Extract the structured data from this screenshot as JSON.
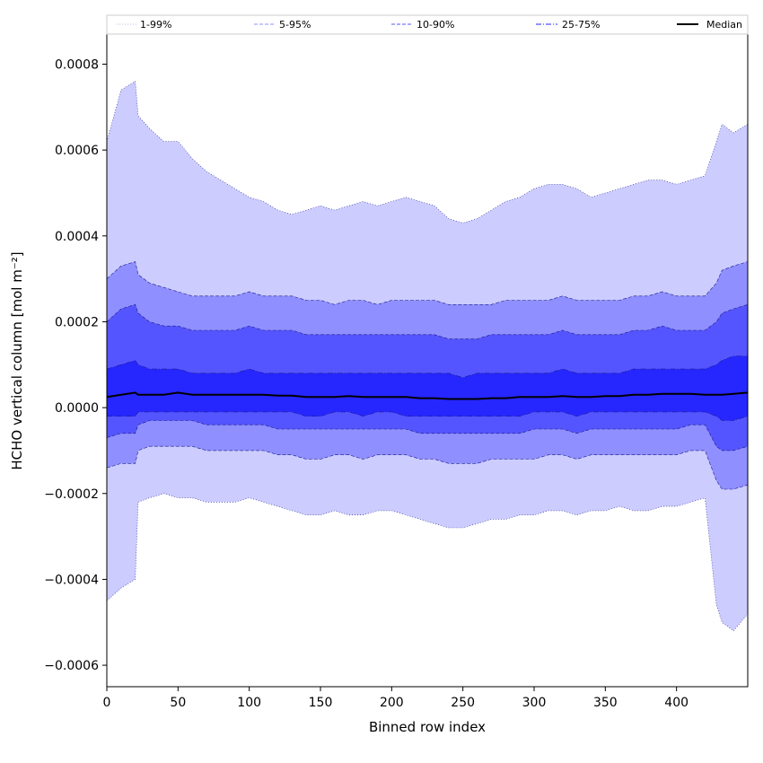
{
  "chart_data": {
    "type": "area",
    "xlabel": "Binned row index",
    "ylabel": "HCHO vertical column [mol m⁻²]",
    "xlim": [
      0,
      450
    ],
    "ylim": [
      -0.00065,
      0.00087
    ],
    "x_ticks": [
      0,
      50,
      100,
      150,
      200,
      250,
      300,
      350,
      400
    ],
    "x_tick_labels": [
      "0",
      "50",
      "100",
      "150",
      "200",
      "250",
      "300",
      "350",
      "400"
    ],
    "y_ticks": [
      -0.0006,
      -0.0004,
      -0.0002,
      0.0,
      0.0002,
      0.0004,
      0.0006,
      0.0008
    ],
    "y_tick_labels": [
      "−0.0006",
      "−0.0004",
      "−0.0002",
      "0.0000",
      "0.0002",
      "0.0004",
      "0.0006",
      "0.0008"
    ],
    "grid": false,
    "legend_position": "top",
    "legend": [
      {
        "label": "1-99%",
        "color": "#ccccff",
        "style": "dotted"
      },
      {
        "label": "5-95%",
        "color": "#8f8fff",
        "style": "dashed"
      },
      {
        "label": "10-90%",
        "color": "#5555ff",
        "style": "dashed"
      },
      {
        "label": "25-75%",
        "color": "#2626ff",
        "style": "dashdot"
      },
      {
        "label": "Median",
        "color": "#000000",
        "style": "solid"
      }
    ],
    "x": [
      0,
      10,
      20,
      22,
      30,
      40,
      50,
      60,
      70,
      80,
      90,
      100,
      110,
      120,
      130,
      140,
      150,
      160,
      170,
      180,
      190,
      200,
      210,
      220,
      230,
      240,
      250,
      260,
      270,
      280,
      290,
      300,
      310,
      320,
      330,
      340,
      350,
      360,
      370,
      380,
      390,
      400,
      410,
      420,
      428,
      432,
      440,
      450
    ],
    "series": [
      {
        "name": "1-99%",
        "fill": "#ccccff",
        "upper": [
          0.00062,
          0.00074,
          0.00076,
          0.00068,
          0.00065,
          0.00062,
          0.00062,
          0.00058,
          0.00055,
          0.00053,
          0.00051,
          0.00049,
          0.00048,
          0.00046,
          0.00045,
          0.00046,
          0.00047,
          0.00046,
          0.00047,
          0.00048,
          0.00047,
          0.00048,
          0.00049,
          0.00048,
          0.00047,
          0.00044,
          0.00043,
          0.00044,
          0.00046,
          0.00048,
          0.00049,
          0.00051,
          0.00052,
          0.00052,
          0.00051,
          0.00049,
          0.0005,
          0.00051,
          0.00052,
          0.00053,
          0.00053,
          0.00052,
          0.00053,
          0.00054,
          0.00062,
          0.00066,
          0.00064,
          0.00066
        ],
        "lower": [
          -0.00045,
          -0.00042,
          -0.0004,
          -0.00022,
          -0.00021,
          -0.0002,
          -0.00021,
          -0.00021,
          -0.00022,
          -0.00022,
          -0.00022,
          -0.00021,
          -0.00022,
          -0.00023,
          -0.00024,
          -0.00025,
          -0.00025,
          -0.00024,
          -0.00025,
          -0.00025,
          -0.00024,
          -0.00024,
          -0.00025,
          -0.00026,
          -0.00027,
          -0.00028,
          -0.00028,
          -0.00027,
          -0.00026,
          -0.00026,
          -0.00025,
          -0.00025,
          -0.00024,
          -0.00024,
          -0.00025,
          -0.00024,
          -0.00024,
          -0.00023,
          -0.00024,
          -0.00024,
          -0.00023,
          -0.00023,
          -0.00022,
          -0.00021,
          -0.00046,
          -0.0005,
          -0.00052,
          -0.00048
        ]
      },
      {
        "name": "5-95%",
        "fill": "#8f8fff",
        "upper": [
          0.0003,
          0.00033,
          0.00034,
          0.00031,
          0.00029,
          0.00028,
          0.00027,
          0.00026,
          0.00026,
          0.00026,
          0.00026,
          0.00027,
          0.00026,
          0.00026,
          0.00026,
          0.00025,
          0.00025,
          0.00024,
          0.00025,
          0.00025,
          0.00024,
          0.00025,
          0.00025,
          0.00025,
          0.00025,
          0.00024,
          0.00024,
          0.00024,
          0.00024,
          0.00025,
          0.00025,
          0.00025,
          0.00025,
          0.00026,
          0.00025,
          0.00025,
          0.00025,
          0.00025,
          0.00026,
          0.00026,
          0.00027,
          0.00026,
          0.00026,
          0.00026,
          0.00029,
          0.00032,
          0.00033,
          0.00034
        ],
        "lower": [
          -0.00014,
          -0.00013,
          -0.00013,
          -0.0001,
          -9e-05,
          -9e-05,
          -9e-05,
          -9e-05,
          -0.0001,
          -0.0001,
          -0.0001,
          -0.0001,
          -0.0001,
          -0.00011,
          -0.00011,
          -0.00012,
          -0.00012,
          -0.00011,
          -0.00011,
          -0.00012,
          -0.00011,
          -0.00011,
          -0.00011,
          -0.00012,
          -0.00012,
          -0.00013,
          -0.00013,
          -0.00013,
          -0.00012,
          -0.00012,
          -0.00012,
          -0.00012,
          -0.00011,
          -0.00011,
          -0.00012,
          -0.00011,
          -0.00011,
          -0.00011,
          -0.00011,
          -0.00011,
          -0.00011,
          -0.00011,
          -0.0001,
          -0.0001,
          -0.00017,
          -0.00019,
          -0.00019,
          -0.00018
        ]
      },
      {
        "name": "10-90%",
        "fill": "#5555ff",
        "upper": [
          0.0002,
          0.00023,
          0.00024,
          0.00022,
          0.0002,
          0.00019,
          0.00019,
          0.00018,
          0.00018,
          0.00018,
          0.00018,
          0.00019,
          0.00018,
          0.00018,
          0.00018,
          0.00017,
          0.00017,
          0.00017,
          0.00017,
          0.00017,
          0.00017,
          0.00017,
          0.00017,
          0.00017,
          0.00017,
          0.00016,
          0.00016,
          0.00016,
          0.00017,
          0.00017,
          0.00017,
          0.00017,
          0.00017,
          0.00018,
          0.00017,
          0.00017,
          0.00017,
          0.00017,
          0.00018,
          0.00018,
          0.00019,
          0.00018,
          0.00018,
          0.00018,
          0.0002,
          0.00022,
          0.00023,
          0.00024
        ],
        "lower": [
          -7e-05,
          -6e-05,
          -6e-05,
          -4e-05,
          -3e-05,
          -3e-05,
          -3e-05,
          -3e-05,
          -4e-05,
          -4e-05,
          -4e-05,
          -4e-05,
          -4e-05,
          -5e-05,
          -5e-05,
          -5e-05,
          -5e-05,
          -5e-05,
          -5e-05,
          -5e-05,
          -5e-05,
          -5e-05,
          -5e-05,
          -6e-05,
          -6e-05,
          -6e-05,
          -6e-05,
          -6e-05,
          -6e-05,
          -6e-05,
          -6e-05,
          -5e-05,
          -5e-05,
          -5e-05,
          -6e-05,
          -5e-05,
          -5e-05,
          -5e-05,
          -5e-05,
          -5e-05,
          -5e-05,
          -5e-05,
          -4e-05,
          -4e-05,
          -9e-05,
          -0.0001,
          -0.0001,
          -9e-05
        ]
      },
      {
        "name": "25-75%",
        "fill": "#2626ff",
        "upper": [
          9e-05,
          0.0001,
          0.00011,
          0.0001,
          9e-05,
          9e-05,
          9e-05,
          8e-05,
          8e-05,
          8e-05,
          8e-05,
          9e-05,
          8e-05,
          8e-05,
          8e-05,
          8e-05,
          8e-05,
          8e-05,
          8e-05,
          8e-05,
          8e-05,
          8e-05,
          8e-05,
          8e-05,
          8e-05,
          8e-05,
          7e-05,
          8e-05,
          8e-05,
          8e-05,
          8e-05,
          8e-05,
          8e-05,
          9e-05,
          8e-05,
          8e-05,
          8e-05,
          8e-05,
          9e-05,
          9e-05,
          9e-05,
          9e-05,
          9e-05,
          9e-05,
          0.0001,
          0.00011,
          0.00012,
          0.00012
        ],
        "lower": [
          -2e-05,
          -2e-05,
          -2e-05,
          -1e-05,
          -1e-05,
          -1e-05,
          -1e-05,
          -1e-05,
          -1e-05,
          -1e-05,
          -1e-05,
          -1e-05,
          -1e-05,
          -1e-05,
          -1e-05,
          -2e-05,
          -2e-05,
          -1e-05,
          -1e-05,
          -2e-05,
          -1e-05,
          -1e-05,
          -2e-05,
          -2e-05,
          -2e-05,
          -2e-05,
          -2e-05,
          -2e-05,
          -2e-05,
          -2e-05,
          -2e-05,
          -1e-05,
          -1e-05,
          -1e-05,
          -2e-05,
          -1e-05,
          -1e-05,
          -1e-05,
          -1e-05,
          -1e-05,
          -1e-05,
          -1e-05,
          -1e-05,
          -1e-05,
          -2e-05,
          -3e-05,
          -3e-05,
          -2e-05
        ]
      },
      {
        "name": "Median",
        "color": "#000000",
        "values": [
          2.5e-05,
          3e-05,
          3.5e-05,
          3e-05,
          3e-05,
          3e-05,
          3.5e-05,
          3e-05,
          3e-05,
          3e-05,
          3e-05,
          3e-05,
          3e-05,
          2.8e-05,
          2.8e-05,
          2.5e-05,
          2.5e-05,
          2.5e-05,
          2.7e-05,
          2.5e-05,
          2.5e-05,
          2.5e-05,
          2.5e-05,
          2.2e-05,
          2.2e-05,
          2e-05,
          2e-05,
          2e-05,
          2.2e-05,
          2.2e-05,
          2.5e-05,
          2.5e-05,
          2.5e-05,
          2.7e-05,
          2.5e-05,
          2.5e-05,
          2.7e-05,
          2.7e-05,
          3e-05,
          3e-05,
          3.2e-05,
          3.2e-05,
          3.2e-05,
          3e-05,
          3e-05,
          3e-05,
          3.2e-05,
          3.5e-05
        ]
      }
    ]
  }
}
